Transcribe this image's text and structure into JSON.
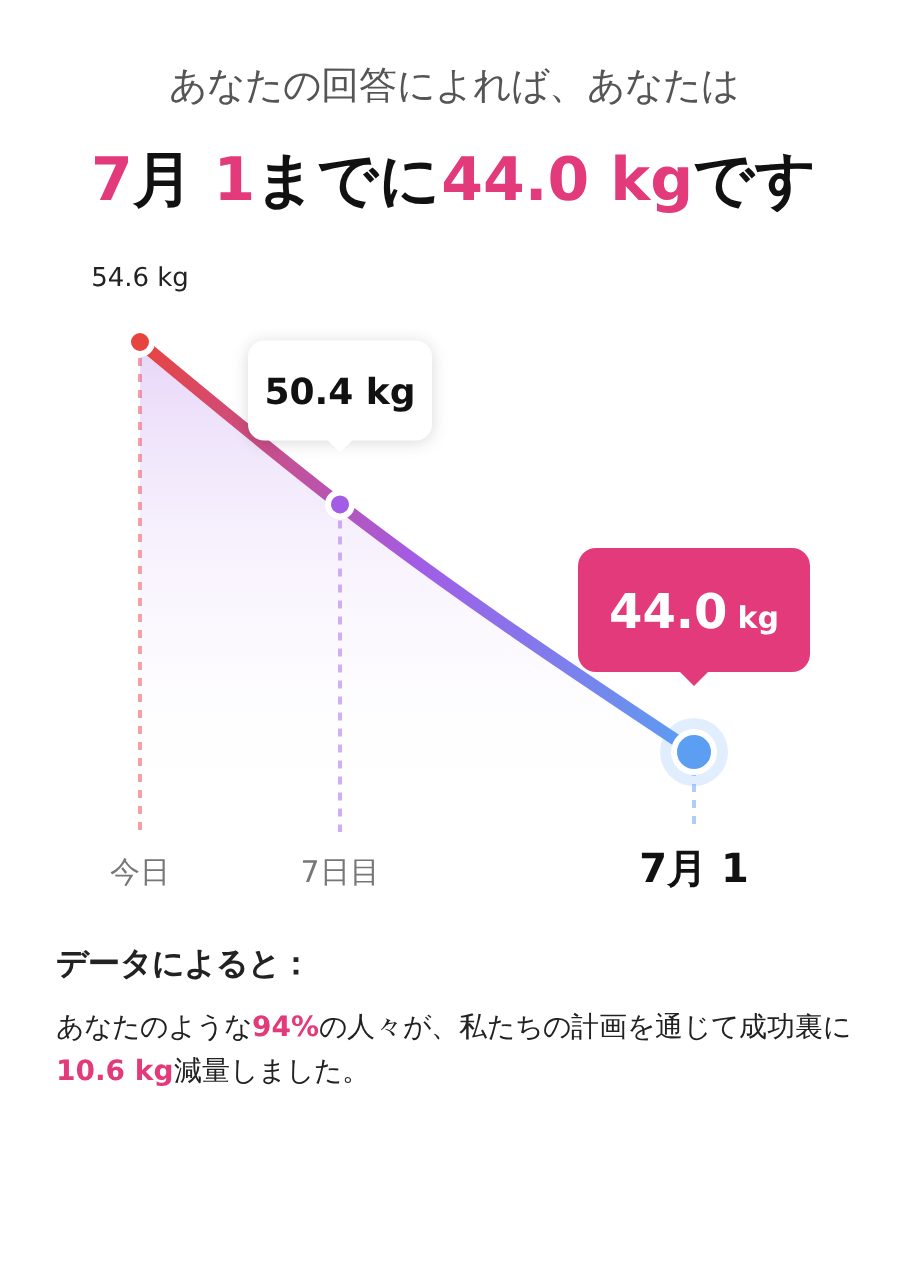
{
  "chart_data": {
    "type": "area",
    "subtitle": "あなたの回答によれば、あなたは",
    "title": "7月 1までに44.0 kgです",
    "categories": [
      "今日",
      "7日目",
      "7月 1"
    ],
    "values": [
      54.6,
      50.4,
      44.0
    ],
    "colors": [
      "#e8443f",
      "#a25ce6",
      "#5b9ef2"
    ],
    "value_labels": [
      "54.6 kg",
      "50.4 kg",
      "44.0 kg"
    ],
    "marker": "circle",
    "line_style": "solid",
    "annotations": [
      "データによると：",
      "あなたのような94%の人々が、私たちの計画を通じて成功裏に10.6 kg減量しました。"
    ]
  }
}
